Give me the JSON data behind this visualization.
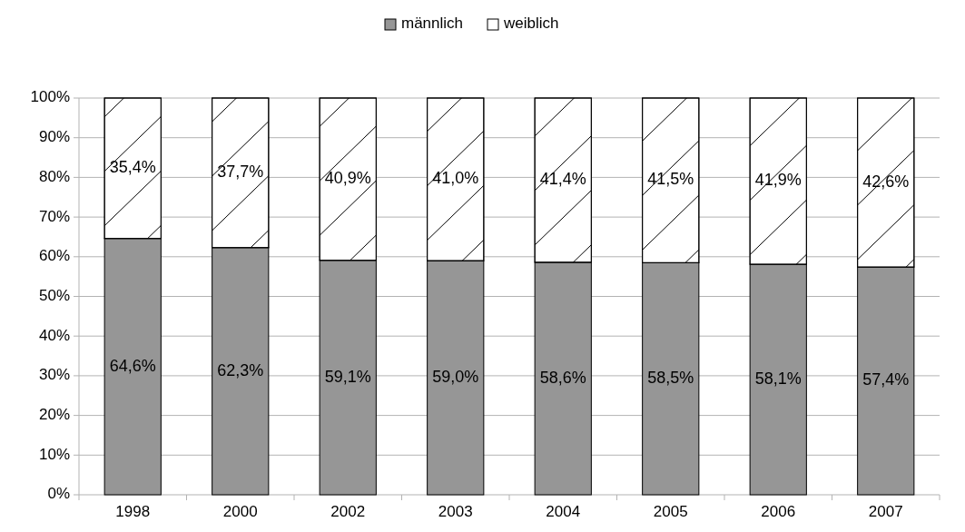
{
  "chart_data": {
    "type": "bar",
    "stacked": true,
    "categories": [
      "1998",
      "2000",
      "2002",
      "2003",
      "2004",
      "2005",
      "2006",
      "2007"
    ],
    "series": [
      {
        "name": "männlich",
        "color": "#969696",
        "values": [
          64.6,
          62.3,
          59.1,
          59.0,
          58.6,
          58.5,
          58.1,
          57.4
        ],
        "value_labels": [
          "64,6%",
          "62,3%",
          "59,1%",
          "59,0%",
          "58,6%",
          "58,5%",
          "58,1%",
          "57,4%"
        ]
      },
      {
        "name": "weiblich",
        "color": "#ffffff",
        "values": [
          35.4,
          37.7,
          40.9,
          41.0,
          41.4,
          41.5,
          41.9,
          42.6
        ],
        "value_labels": [
          "35,4%",
          "37,7%",
          "40,9%",
          "41,0%",
          "41,4%",
          "41,5%",
          "41,9%",
          "42,6%"
        ]
      }
    ],
    "ylim": [
      0,
      100
    ],
    "yticks": [
      {
        "value": 0,
        "label": "0%"
      },
      {
        "value": 10,
        "label": "10%"
      },
      {
        "value": 20,
        "label": "20%"
      },
      {
        "value": 30,
        "label": "30%"
      },
      {
        "value": 40,
        "label": "40%"
      },
      {
        "value": 50,
        "label": "50%"
      },
      {
        "value": 60,
        "label": "60%"
      },
      {
        "value": 70,
        "label": "70%"
      },
      {
        "value": 80,
        "label": "80%"
      },
      {
        "value": 90,
        "label": "90%"
      },
      {
        "value": 100,
        "label": "100%"
      }
    ],
    "grid": "y",
    "legend": "top"
  }
}
